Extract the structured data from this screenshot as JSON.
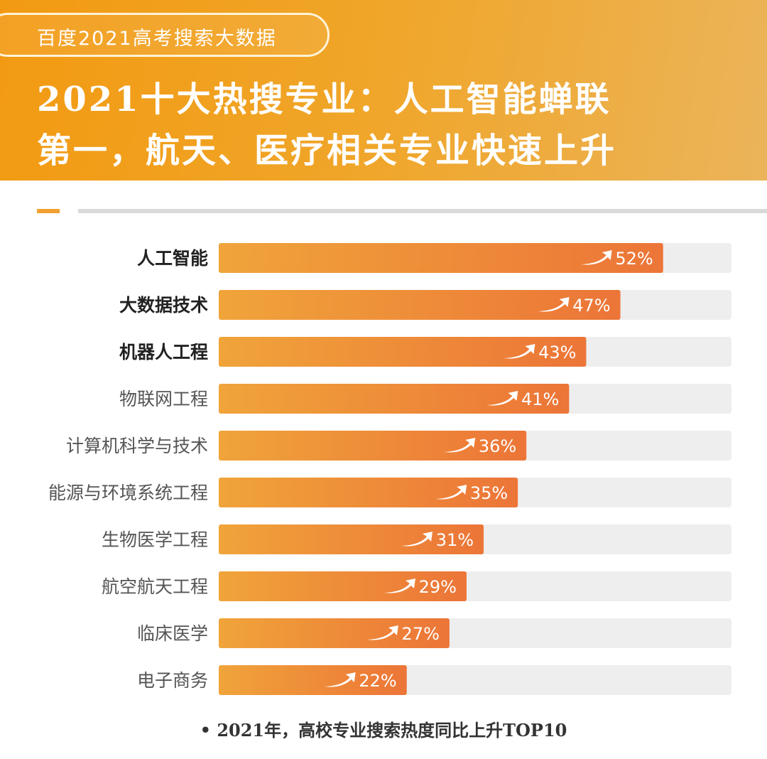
{
  "header": {
    "tag": "百度2021高考搜索大数据",
    "title_line1": "2021十大热搜专业：人工智能蝉联",
    "title_line2": "第一，航天、医疗相关专业快速上升"
  },
  "chart_data": {
    "type": "bar",
    "orientation": "horizontal",
    "categories": [
      "人工智能",
      "大数据技术",
      "机器人工程",
      "物联网工程",
      "计算机科学与技术",
      "能源与环境系统工程",
      "生物医学工程",
      "航空航天工程",
      "临床医学",
      "电子商务"
    ],
    "values": [
      52,
      47,
      43,
      41,
      36,
      35,
      31,
      29,
      27,
      22
    ],
    "labels": [
      "52%",
      "47%",
      "43%",
      "41%",
      "36%",
      "35%",
      "31%",
      "29%",
      "27%",
      "22%"
    ],
    "bold_categories": 3,
    "xlim": [
      0,
      60
    ],
    "bar_color_start": "#f0a43a",
    "bar_color_end": "#ec7538",
    "track_color": "#eeeeee",
    "icon": "up-trend-arrow-icon",
    "caption": "• 2021年，高校专业搜索热度同比上升TOP10"
  }
}
